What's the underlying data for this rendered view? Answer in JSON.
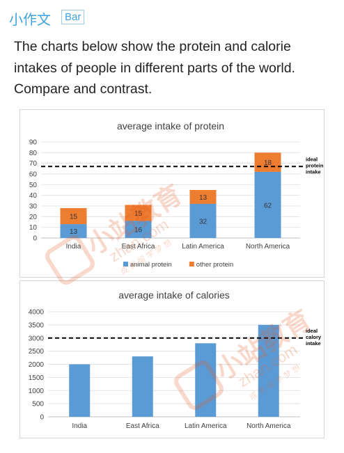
{
  "header": {
    "app_title": "小作文",
    "tag": "Bar"
  },
  "prompt": {
    "lines": [
      "The charts below show the protein and calorie",
      "intakes of people in different parts of the world.",
      "Compare and contrast."
    ]
  },
  "watermark": {
    "brand": "小站教育",
    "site": "zhan.com",
    "tagline": "成 就 留 学 梦 想"
  },
  "chart_data": [
    {
      "type": "bar",
      "title": "average intake of protein",
      "stacked": true,
      "categories": [
        "India",
        "East Africa",
        "Latin America",
        "North America"
      ],
      "series": [
        {
          "name": "animal protein",
          "values": [
            13,
            16,
            32,
            62
          ],
          "color": "#5b9bd5"
        },
        {
          "name": "other protein",
          "values": [
            15,
            15,
            13,
            18
          ],
          "color": "#ed7d31"
        }
      ],
      "ylim": [
        0,
        90
      ],
      "yticks": [
        0,
        10,
        20,
        30,
        40,
        50,
        60,
        70,
        80,
        90
      ],
      "reference_line": {
        "value": 67,
        "label": [
          "ideal",
          "protein",
          "intake"
        ]
      },
      "grid": true,
      "legend": "bottom"
    },
    {
      "type": "bar",
      "title": "average intake of calories",
      "categories": [
        "India",
        "East Africa",
        "Latin America",
        "North America"
      ],
      "values": [
        2000,
        2300,
        2800,
        3500
      ],
      "color": "#5b9bd5",
      "ylim": [
        0,
        4000
      ],
      "yticks": [
        0,
        500,
        1000,
        1500,
        2000,
        2500,
        3000,
        3500,
        4000
      ],
      "reference_line": {
        "value": 3000,
        "label": [
          "ideal",
          "calory",
          "intake"
        ]
      },
      "grid": true
    }
  ]
}
